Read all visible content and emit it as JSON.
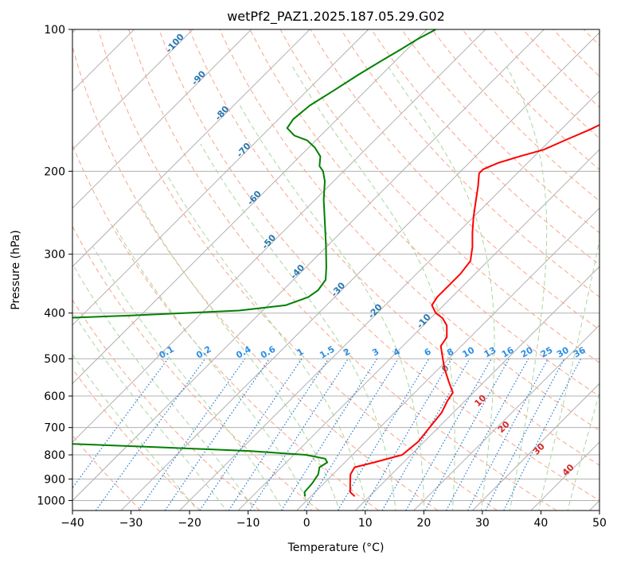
{
  "chart_data": {
    "type": "line",
    "title": "wetPf2_PAZ1.2025.187.05.29.G02",
    "xlabel": "Temperature (°C)",
    "ylabel": "Pressure (hPa)",
    "xlim": [
      -40,
      50
    ],
    "ylim": [
      1050,
      100
    ],
    "y_scale": "log",
    "x_ticks": [
      "−40",
      "−30",
      "−20",
      "−10",
      "0",
      "10",
      "20",
      "30",
      "40",
      "50"
    ],
    "x_tick_values": [
      -40,
      -30,
      -20,
      -10,
      0,
      10,
      20,
      30,
      40,
      50
    ],
    "y_ticks": [
      "100",
      "200",
      "300",
      "400",
      "500",
      "600",
      "700",
      "800",
      "900",
      "1000"
    ],
    "y_tick_values": [
      100,
      200,
      300,
      400,
      500,
      600,
      700,
      800,
      900,
      1000
    ],
    "grid": true,
    "skew": "skew-T log-p diagram",
    "series": [
      {
        "role": "temperature",
        "color": "#ff0000",
        "points": [
          [
            -5.5,
            100
          ],
          [
            -6.5,
            105
          ],
          [
            -8,
            112
          ],
          [
            -9,
            120
          ],
          [
            -9.5,
            128
          ],
          [
            -10,
            135
          ],
          [
            -11,
            142
          ],
          [
            -12.5,
            152
          ],
          [
            -15,
            163
          ],
          [
            -17.5,
            172
          ],
          [
            -19.5,
            180
          ],
          [
            -22.5,
            186
          ],
          [
            -25,
            192
          ],
          [
            -26.5,
            198
          ],
          [
            -26.5,
            202
          ],
          [
            -24.5,
            215
          ],
          [
            -22.5,
            230
          ],
          [
            -20,
            250
          ],
          [
            -17.5,
            270
          ],
          [
            -15,
            290
          ],
          [
            -13,
            310
          ],
          [
            -12.5,
            330
          ],
          [
            -12.5,
            350
          ],
          [
            -12.5,
            370
          ],
          [
            -12,
            385
          ],
          [
            -10,
            400
          ],
          [
            -8,
            410
          ],
          [
            -6,
            425
          ],
          [
            -4,
            450
          ],
          [
            -3.5,
            470
          ],
          [
            -1,
            500
          ],
          [
            1,
            525
          ],
          [
            4,
            560
          ],
          [
            6.5,
            590
          ],
          [
            7,
            615
          ],
          [
            8,
            650
          ],
          [
            8.5,
            700
          ],
          [
            9,
            750
          ],
          [
            8.5,
            800
          ],
          [
            5,
            830
          ],
          [
            2.5,
            850
          ],
          [
            3,
            880
          ],
          [
            4.5,
            920
          ],
          [
            6,
            960
          ],
          [
            7.5,
            980
          ]
        ]
      },
      {
        "role": "dewpoint",
        "color": "#008000",
        "points": [
          [
            -58.5,
            100
          ],
          [
            -60,
            105
          ],
          [
            -61,
            110
          ],
          [
            -62.5,
            117
          ],
          [
            -64,
            125
          ],
          [
            -65.5,
            135
          ],
          [
            -67,
            145
          ],
          [
            -67.5,
            155
          ],
          [
            -67,
            162
          ],
          [
            -64.5,
            168
          ],
          [
            -61.5,
            172
          ],
          [
            -59,
            178
          ],
          [
            -56.5,
            186
          ],
          [
            -55,
            195
          ],
          [
            -53.5,
            200
          ],
          [
            -51.5,
            210
          ],
          [
            -48.5,
            230
          ],
          [
            -44,
            260
          ],
          [
            -40,
            290
          ],
          [
            -36.5,
            320
          ],
          [
            -34.5,
            340
          ],
          [
            -34,
            358
          ],
          [
            -34.5,
            370
          ],
          [
            -37,
            385
          ],
          [
            -44,
            395
          ],
          [
            -62,
            405
          ],
          [
            -85,
            415
          ],
          [
            -90,
            420
          ],
          [
            -92,
            440
          ],
          [
            -91,
            480
          ],
          [
            -90,
            520
          ],
          [
            -91,
            580
          ],
          [
            -96,
            610
          ],
          [
            -98,
            640
          ],
          [
            -96,
            670
          ],
          [
            -99,
            680
          ],
          [
            -110,
            690
          ],
          [
            -116,
            700
          ],
          [
            -118,
            715
          ],
          [
            -115,
            720
          ],
          [
            -90,
            735
          ],
          [
            -60,
            750
          ],
          [
            -35,
            770
          ],
          [
            -18,
            785
          ],
          [
            -8,
            800
          ],
          [
            -4,
            815
          ],
          [
            -3,
            830
          ],
          [
            -3.5,
            850
          ],
          [
            -2.5,
            880
          ],
          [
            -2,
            920
          ],
          [
            -1.8,
            960
          ],
          [
            -1,
            980
          ]
        ]
      }
    ],
    "dry_adiabat_labels": [
      "-100",
      "-90",
      "-80",
      "-70",
      "-60",
      "-50",
      "-40",
      "-30",
      "-20",
      "-10"
    ],
    "mixing_ratio_labels": [
      "0.1",
      "0.2",
      "0.4",
      "0.6",
      "1",
      "1.5",
      "2",
      "3",
      "4",
      "6",
      "8",
      "10",
      "13",
      "16",
      "20",
      "25",
      "30",
      "36"
    ],
    "moist_adiabat_labels": [
      "0",
      "10",
      "20",
      "30",
      "40"
    ],
    "colors": {
      "temperature": "#ff0000",
      "dewpoint": "#008000",
      "isotherm": "#b0b0b0",
      "dry_adiabat": "#f7a58a",
      "moist_adiabat": "#a9d5a0",
      "mixing_ratio": "#1f77d4",
      "dry_adiabat_label": "#2876b0",
      "moist_adiabat_label": "#d62728",
      "mixing_ratio_label": "#2b8fe6",
      "zero_label": "#7f7f7f"
    }
  }
}
